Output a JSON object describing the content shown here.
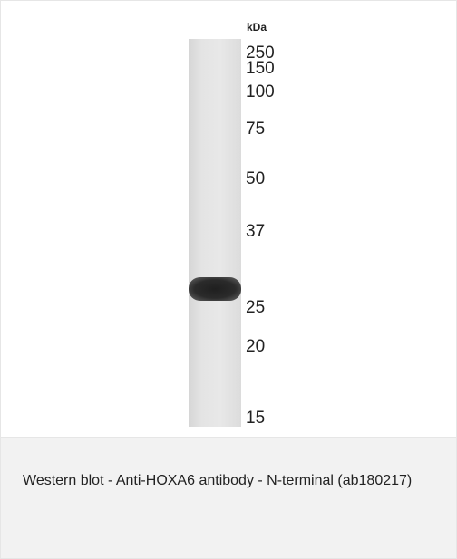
{
  "figure": {
    "unit_label": "kDa",
    "markers": [
      "250",
      "150",
      "100",
      "75",
      "50",
      "37",
      "25",
      "20",
      "15"
    ]
  },
  "caption": "Western blot - Anti-HOXA6 antibody - N-terminal (ab180217)"
}
